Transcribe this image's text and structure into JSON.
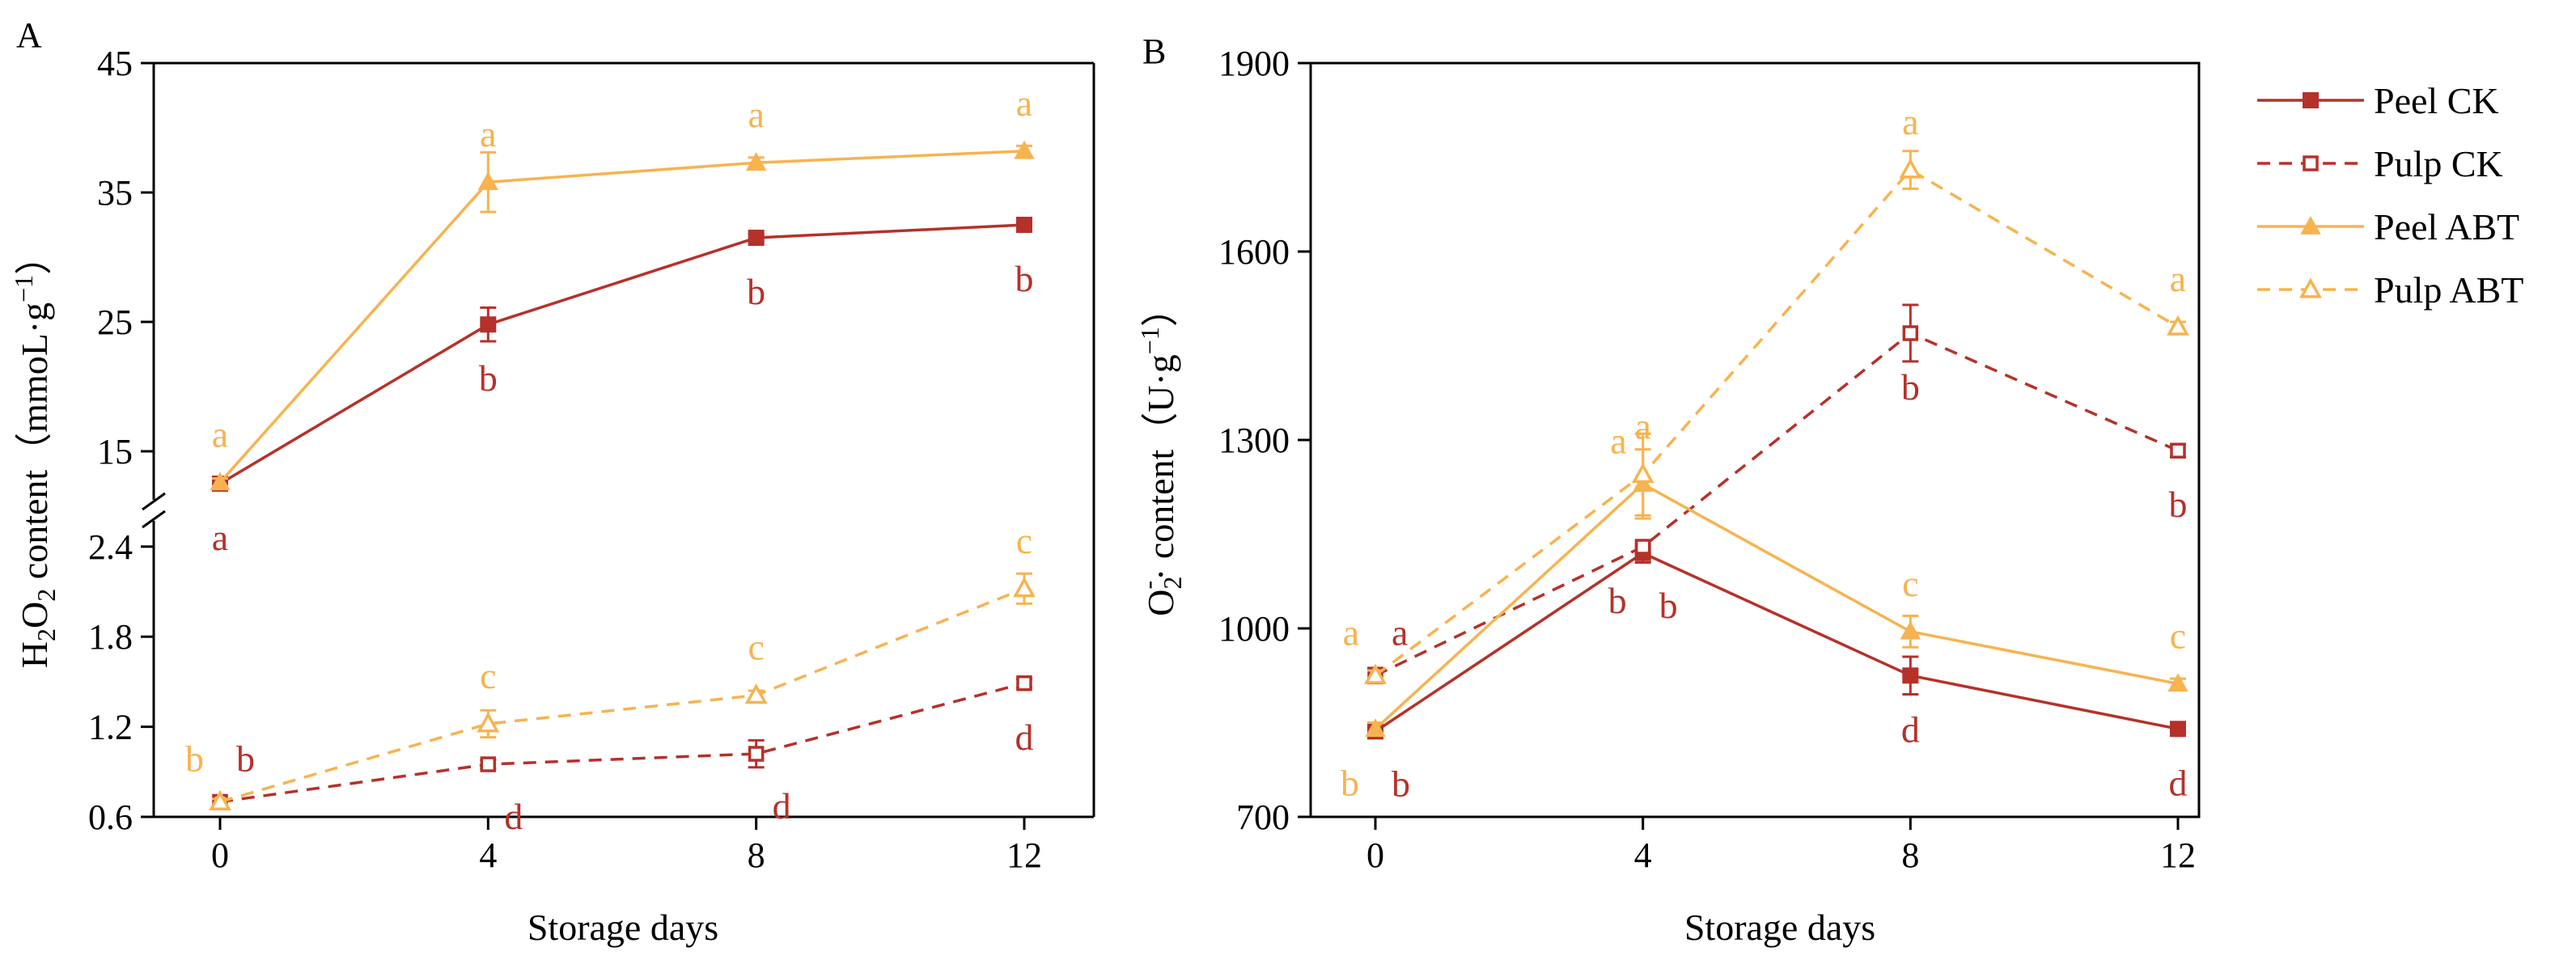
{
  "chart_data": [
    {
      "type": "line",
      "panel_label": "A",
      "title": "",
      "xlabel": "Storage days",
      "ylabel": "H2O2 content（mmoL·g-1）",
      "ylabel_parts": {
        "h": "H",
        "two_a": "2",
        "o": "O",
        "two_b": "2",
        "rest": " content（mmoL·g",
        "sup": "−1",
        "close": "）"
      },
      "x": [
        0,
        4,
        8,
        12
      ],
      "x_ticks": [
        "0",
        "4",
        "8",
        "12"
      ],
      "y_axis_break": true,
      "upper_ylim": [
        11.5,
        45
      ],
      "upper_y_ticks": [
        "15",
        "25",
        "35",
        "45"
      ],
      "lower_ylim": [
        0.6,
        2.55
      ],
      "lower_y_ticks": [
        "0.6",
        "1.2",
        "1.8",
        "2.4"
      ],
      "series": [
        {
          "name": "Peel CK",
          "color": "#b5312a",
          "dashed": false,
          "marker": "filled-square",
          "axis": "upper",
          "values": [
            12.5,
            24.8,
            31.5,
            32.5
          ],
          "errors": [
            0.3,
            1.3,
            0.3,
            0.3
          ],
          "letters": [
            "a",
            "b",
            "b",
            "b"
          ],
          "letter_pos": [
            "below",
            "below",
            "below",
            "below"
          ]
        },
        {
          "name": "Peel ABT",
          "color": "#f7b350",
          "dashed": false,
          "marker": "filled-triangle",
          "axis": "upper",
          "values": [
            12.6,
            35.8,
            37.3,
            38.2
          ],
          "errors": [
            0.3,
            2.3,
            0.4,
            0.4
          ],
          "letters": [
            "a",
            "a",
            "a",
            "a"
          ],
          "letter_pos": [
            "above",
            "above",
            "above",
            "above"
          ]
        },
        {
          "name": "Pulp CK",
          "color": "#b5312a",
          "dashed": true,
          "marker": "open-square",
          "axis": "lower",
          "values": [
            0.7,
            0.95,
            1.02,
            1.49
          ],
          "errors": [
            0.02,
            0.03,
            0.09,
            0.03
          ],
          "letters": [
            "b",
            "d",
            "d",
            "d"
          ],
          "letter_pos": [
            "above-right",
            "below-right",
            "below-right",
            "below"
          ]
        },
        {
          "name": "Pulp ABT",
          "color": "#f7b350",
          "dashed": true,
          "marker": "open-triangle",
          "axis": "lower",
          "values": [
            0.7,
            1.22,
            1.41,
            2.12
          ],
          "errors": [
            0.02,
            0.09,
            0.03,
            0.1
          ],
          "letters": [
            "b",
            "c",
            "c",
            "c"
          ],
          "letter_pos": [
            "above-left",
            "above",
            "above",
            "above"
          ]
        }
      ]
    },
    {
      "type": "line",
      "panel_label": "B",
      "title": "",
      "xlabel": "Storage days",
      "ylabel": "O2·- content（U·g-1）",
      "ylabel_parts": {
        "o": "O",
        "sub": "2",
        "sup_minus": "-",
        "rest": "· content（U·g",
        "sup": "−1",
        "close": "）"
      },
      "x": [
        0,
        4,
        8,
        12
      ],
      "x_ticks": [
        "0",
        "4",
        "8",
        "12"
      ],
      "ylim": [
        700,
        1900
      ],
      "y_ticks": [
        "700",
        "1000",
        "1300",
        "1600",
        "1900"
      ],
      "legend_position": "outside-right-top",
      "series": [
        {
          "name": "Peel CK",
          "color": "#b5312a",
          "dashed": false,
          "marker": "filled-square",
          "values": [
            836,
            1120,
            925,
            840
          ],
          "errors": [
            8,
            15,
            30,
            8
          ],
          "letters": [
            "b",
            "b",
            "d",
            "d"
          ],
          "letter_pos": [
            "below-right",
            "below-right",
            "below",
            "below"
          ]
        },
        {
          "name": "Pulp CK",
          "color": "#b5312a",
          "dashed": true,
          "marker": "open-square",
          "values": [
            925,
            1130,
            1470,
            1283
          ],
          "errors": [
            12,
            10,
            45,
            10
          ],
          "letters": [
            "a",
            "b",
            "b",
            "b"
          ],
          "letter_pos": [
            "above-right",
            "below-left",
            "below",
            "below"
          ]
        },
        {
          "name": "Peel ABT",
          "color": "#f7b350",
          "dashed": false,
          "marker": "filled-triangle",
          "values": [
            840,
            1230,
            995,
            912
          ],
          "errors": [
            10,
            55,
            25,
            8
          ],
          "letters": [
            "b",
            "a",
            "c",
            "c"
          ],
          "letter_pos": [
            "below-left",
            "above-left",
            "above",
            "above"
          ]
        },
        {
          "name": "Pulp ABT",
          "color": "#f7b350",
          "dashed": true,
          "marker": "open-triangle",
          "values": [
            925,
            1245,
            1730,
            1480
          ],
          "errors": [
            8,
            65,
            30,
            8
          ],
          "letters": [
            "a",
            "a",
            "a",
            "a"
          ],
          "letter_pos": [
            "above-left",
            "above",
            "above",
            "above"
          ]
        }
      ]
    }
  ]
}
